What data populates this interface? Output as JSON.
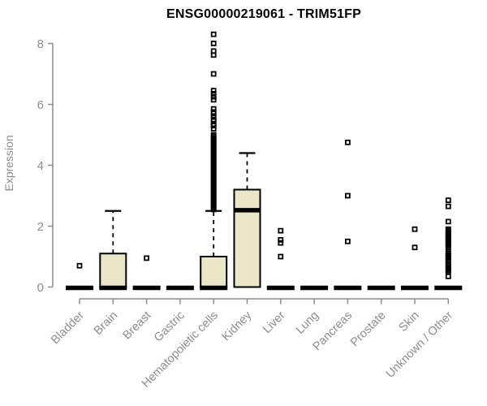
{
  "figure": {
    "title": "ENSG00000219061 - TRIM51FP",
    "ylabel": "Expression"
  },
  "chart_data": {
    "type": "boxplot",
    "title": "ENSG00000219061 - TRIM51FP",
    "xlabel": "",
    "ylabel": "Expression",
    "ylim": [
      0,
      8.5
    ],
    "yticks": [
      0,
      2,
      4,
      6,
      8
    ],
    "grid": false,
    "legend": false,
    "categories": [
      "Bladder",
      "Brain",
      "Breast",
      "Gastric",
      "Hematopoietic cells",
      "Kidney",
      "Liver",
      "Lung",
      "Pancreas",
      "Prostate",
      "Skin",
      "Unknown / Other"
    ],
    "boxes": [
      {
        "category": "Bladder",
        "q1": 0,
        "median": 0,
        "q3": 0,
        "whisker_low": 0,
        "whisker_high": 0,
        "outliers": [
          0.7
        ]
      },
      {
        "category": "Brain",
        "q1": 0,
        "median": 0,
        "q3": 1.1,
        "whisker_low": 0,
        "whisker_high": 2.5,
        "outliers": []
      },
      {
        "category": "Breast",
        "q1": 0,
        "median": 0,
        "q3": 0,
        "whisker_low": 0,
        "whisker_high": 0,
        "outliers": [
          0.95
        ]
      },
      {
        "category": "Gastric",
        "q1": 0,
        "median": 0,
        "q3": 0,
        "whisker_low": 0,
        "whisker_high": 0,
        "outliers": []
      },
      {
        "category": "Hematopoietic cells",
        "q1": 0,
        "median": 0,
        "q3": 1.0,
        "whisker_low": 0,
        "whisker_high": 2.5,
        "outliers": [
          8.3,
          8.0,
          7.75,
          7.62,
          7.0,
          6.45,
          6.35,
          6.25,
          6.15,
          5.85,
          5.75,
          5.7,
          5.6,
          5.5,
          5.45,
          5.35,
          5.3,
          5.2,
          5.0,
          4.95,
          4.9,
          4.85,
          4.8,
          4.75,
          4.7,
          4.65,
          4.6,
          4.55,
          4.5,
          4.45,
          4.4,
          4.35,
          4.3,
          4.25,
          4.2,
          4.15,
          4.1,
          4.05,
          4.0,
          3.95,
          3.9,
          3.85,
          3.8,
          3.75,
          3.7,
          3.65,
          3.6,
          3.55,
          3.5,
          3.45,
          3.4,
          3.35,
          3.3,
          3.25,
          3.2,
          3.15,
          3.1,
          3.05,
          3.0,
          2.95,
          2.9,
          2.85,
          2.8,
          2.75,
          2.7,
          2.65,
          2.6,
          2.55
        ]
      },
      {
        "category": "Kidney",
        "q1": 0,
        "median": 2.55,
        "q3": 3.2,
        "whisker_low": 0,
        "whisker_high": 4.4,
        "outliers": []
      },
      {
        "category": "Liver",
        "q1": 0,
        "median": 0,
        "q3": 0,
        "whisker_low": 0,
        "whisker_high": 0,
        "outliers": [
          1.85,
          1.55,
          1.45,
          1.0
        ]
      },
      {
        "category": "Lung",
        "q1": 0,
        "median": 0,
        "q3": 0,
        "whisker_low": 0,
        "whisker_high": 0,
        "outliers": []
      },
      {
        "category": "Pancreas",
        "q1": 0,
        "median": 0,
        "q3": 0,
        "whisker_low": 0,
        "whisker_high": 0,
        "outliers": [
          4.75,
          3.0,
          1.5
        ]
      },
      {
        "category": "Prostate",
        "q1": 0,
        "median": 0,
        "q3": 0,
        "whisker_low": 0,
        "whisker_high": 0,
        "outliers": []
      },
      {
        "category": "Skin",
        "q1": 0,
        "median": 0,
        "q3": 0,
        "whisker_low": 0,
        "whisker_high": 0,
        "outliers": [
          1.9,
          1.3
        ]
      },
      {
        "category": "Unknown / Other",
        "q1": 0,
        "median": 0,
        "q3": 0,
        "whisker_low": 0,
        "whisker_high": 0,
        "outliers": [
          2.85,
          2.65,
          2.15,
          1.9,
          1.85,
          1.8,
          1.75,
          1.7,
          1.65,
          1.6,
          1.55,
          1.5,
          1.45,
          1.4,
          1.35,
          1.3,
          1.15,
          1.1,
          1.05,
          1.0,
          0.95,
          0.9,
          0.85,
          0.75,
          0.7,
          0.65,
          0.6,
          0.55,
          0.5,
          0.35
        ]
      }
    ],
    "colors": {
      "box_fill": "#ece6c9",
      "box_border": "#000000",
      "median": "#000000",
      "whisker": "#000000",
      "outlier": "#000000",
      "axis": "#8c8c8c",
      "tick_label": "#8c8c8c",
      "title": "#000000",
      "background": "#ffffff"
    }
  }
}
